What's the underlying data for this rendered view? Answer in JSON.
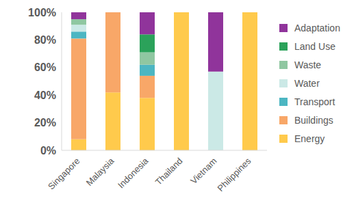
{
  "chart_data": {
    "type": "bar",
    "stacked": true,
    "grid": false,
    "legend": "right",
    "categories": [
      "Singapore",
      "Malaysia",
      "Indonesia",
      "Thailand",
      "Vietnam",
      "Philippines"
    ],
    "series": [
      {
        "name": "Energy",
        "color": "#FFCA4C",
        "values": [
          8,
          42,
          38,
          100,
          0,
          100
        ]
      },
      {
        "name": "Buildings",
        "color": "#F8A768",
        "values": [
          73,
          58,
          16,
          0,
          0,
          0
        ]
      },
      {
        "name": "Transport",
        "color": "#4CB6C2",
        "values": [
          5,
          0,
          8,
          0,
          0,
          0
        ]
      },
      {
        "name": "Water",
        "color": "#CBE9E6",
        "values": [
          5,
          0,
          0,
          0,
          57,
          0
        ]
      },
      {
        "name": "Waste",
        "color": "#8FC7A1",
        "values": [
          4,
          0,
          9,
          0,
          0,
          0
        ]
      },
      {
        "name": "Land Use",
        "color": "#2BA25A",
        "values": [
          0,
          0,
          13,
          0,
          0,
          0
        ]
      },
      {
        "name": "Adaptation",
        "color": "#90349B",
        "values": [
          5,
          0,
          16,
          0,
          43,
          0
        ]
      }
    ],
    "ylim": [
      0,
      100
    ],
    "yticks": [
      {
        "value": 0,
        "label": "0%"
      },
      {
        "value": 20,
        "label": "20%"
      },
      {
        "value": 40,
        "label": "40%"
      },
      {
        "value": 60,
        "label": "60%"
      },
      {
        "value": 80,
        "label": "80%"
      },
      {
        "value": 100,
        "label": "100%"
      }
    ]
  }
}
